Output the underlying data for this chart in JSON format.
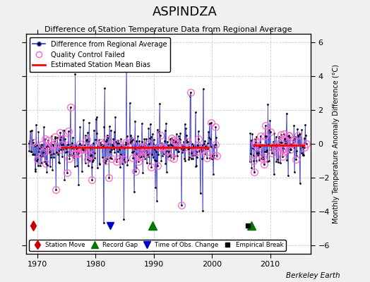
{
  "title": "ASPINDZA",
  "subtitle": "Difference of Station Temperature Data from Regional Average",
  "ylabel": "Monthly Temperature Anomaly Difference (°C)",
  "xlabel_credit": "Berkeley Earth",
  "xlim": [
    1968,
    2017
  ],
  "ylim": [
    -6.5,
    6.5
  ],
  "yticks": [
    -6,
    -4,
    -2,
    0,
    2,
    4,
    6
  ],
  "xticks": [
    1970,
    1980,
    1990,
    2000,
    2010
  ],
  "fig_bg_color": "#f0f0f0",
  "plot_bg_color": "#ffffff",
  "line_color": "#3333cc",
  "qc_color": "#ff66cc",
  "bias_color": "#ff0000",
  "data_color": "#000000",
  "station_move_color": "#cc0000",
  "record_gap_color": "#007700",
  "time_obs_color": "#0000cc",
  "empirical_break_color": "#000000",
  "grid_color": "#cccccc",
  "seed": 42,
  "early_start": 1968.5,
  "early_end": 2000.8,
  "n_early": 390,
  "late_start": 2006.5,
  "late_end": 2016.2,
  "n_late": 116,
  "bias_early_y": -0.2,
  "bias_early_xstart": 1974.0,
  "bias_early_xend": 1999.5,
  "bias_late_y": -0.1,
  "bias_late_xstart": 2007.0,
  "bias_late_xend": 2016.0,
  "marker_y": -4.85,
  "station_move_x": 1969.3,
  "record_gap_x1": 1989.8,
  "record_gap_x2": 2006.8,
  "time_obs_x": 1982.5,
  "empirical_break_x": 2006.2
}
